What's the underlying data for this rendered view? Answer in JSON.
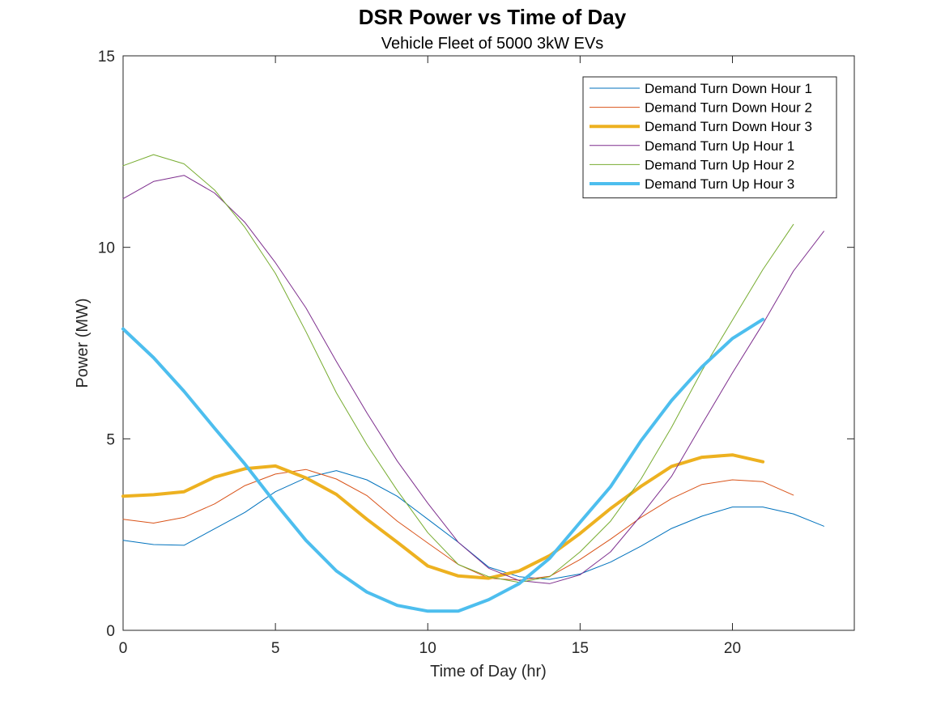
{
  "chart_data": {
    "type": "line",
    "title": "DSR Power vs Time of Day",
    "subtitle": "Vehicle Fleet of 5000  3kW EVs",
    "xlabel": "Time of Day (hr)",
    "ylabel": "Power (MW)",
    "xlim": [
      0,
      24
    ],
    "ylim": [
      0,
      15
    ],
    "xticks": [
      0,
      5,
      10,
      15,
      20
    ],
    "yticks": [
      0,
      5,
      10,
      15
    ],
    "grid": false,
    "legend_position": "top-right",
    "series": [
      {
        "name": "Demand Turn Down Hour 1",
        "color": "#0072BD",
        "width": 1,
        "x": [
          0,
          1,
          2,
          3,
          4,
          5,
          6,
          7,
          8,
          9,
          10,
          11,
          12,
          13,
          14,
          15,
          16,
          17,
          18,
          19,
          20,
          21,
          22,
          23
        ],
        "values": [
          2.35,
          2.24,
          2.22,
          2.65,
          3.08,
          3.62,
          3.98,
          4.17,
          3.93,
          3.5,
          2.9,
          2.3,
          1.65,
          1.4,
          1.33,
          1.47,
          1.78,
          2.2,
          2.66,
          2.98,
          3.22,
          3.22,
          3.04,
          2.72
        ]
      },
      {
        "name": "Demand Turn Down Hour 2",
        "color": "#D95319",
        "width": 1,
        "x": [
          0,
          1,
          2,
          3,
          4,
          5,
          6,
          7,
          8,
          9,
          10,
          11,
          12,
          13,
          14,
          15,
          16,
          17,
          18,
          19,
          20,
          21,
          22
        ],
        "values": [
          2.9,
          2.8,
          2.95,
          3.3,
          3.78,
          4.08,
          4.2,
          3.95,
          3.52,
          2.85,
          2.28,
          1.72,
          1.36,
          1.31,
          1.41,
          1.85,
          2.38,
          2.95,
          3.44,
          3.81,
          3.93,
          3.88,
          3.53
        ]
      },
      {
        "name": "Demand Turn Down Hour 3",
        "color": "#EDB120",
        "width": 4,
        "x": [
          0,
          1,
          2,
          3,
          4,
          5,
          6,
          7,
          8,
          9,
          10,
          11,
          12,
          13,
          14,
          15,
          16,
          17,
          18,
          19,
          20,
          21
        ],
        "values": [
          3.5,
          3.54,
          3.62,
          4.0,
          4.22,
          4.29,
          3.98,
          3.55,
          2.9,
          2.3,
          1.68,
          1.42,
          1.36,
          1.55,
          1.95,
          2.53,
          3.18,
          3.76,
          4.28,
          4.52,
          4.58,
          4.4
        ]
      },
      {
        "name": "Demand Turn Up Hour 1",
        "color": "#7E2F8E",
        "width": 1,
        "x": [
          0,
          1,
          2,
          3,
          4,
          5,
          6,
          7,
          8,
          9,
          10,
          11,
          12,
          13,
          14,
          15,
          16,
          17,
          18,
          19,
          20,
          21,
          22,
          23
        ],
        "values": [
          11.27,
          11.72,
          11.88,
          11.42,
          10.65,
          9.6,
          8.42,
          7.02,
          5.68,
          4.42,
          3.32,
          2.3,
          1.62,
          1.3,
          1.22,
          1.45,
          2.05,
          3.0,
          4.02,
          5.38,
          6.72,
          8.0,
          9.38,
          10.42
        ]
      },
      {
        "name": "Demand Turn Up Hour 2",
        "color": "#77AC30",
        "width": 1,
        "x": [
          0,
          1,
          2,
          3,
          4,
          5,
          6,
          7,
          8,
          9,
          10,
          11,
          12,
          13,
          14,
          15,
          16,
          17,
          18,
          19,
          20,
          21,
          22
        ],
        "values": [
          12.13,
          12.42,
          12.18,
          11.5,
          10.52,
          9.32,
          7.8,
          6.2,
          4.85,
          3.65,
          2.55,
          1.72,
          1.4,
          1.25,
          1.4,
          2.05,
          2.85,
          3.95,
          5.3,
          6.78,
          8.1,
          9.42,
          10.6
        ]
      },
      {
        "name": "Demand Turn Up Hour 3",
        "color": "#4DBEEE",
        "width": 4,
        "x": [
          0,
          1,
          2,
          3,
          4,
          5,
          6,
          7,
          8,
          9,
          10,
          11,
          12,
          13,
          14,
          15,
          16,
          17,
          18,
          19,
          20,
          21
        ],
        "values": [
          7.87,
          7.12,
          6.24,
          5.28,
          4.34,
          3.32,
          2.35,
          1.55,
          1.0,
          0.65,
          0.5,
          0.5,
          0.8,
          1.22,
          1.88,
          2.82,
          3.75,
          4.95,
          6.0,
          6.88,
          7.62,
          8.12
        ]
      }
    ]
  }
}
